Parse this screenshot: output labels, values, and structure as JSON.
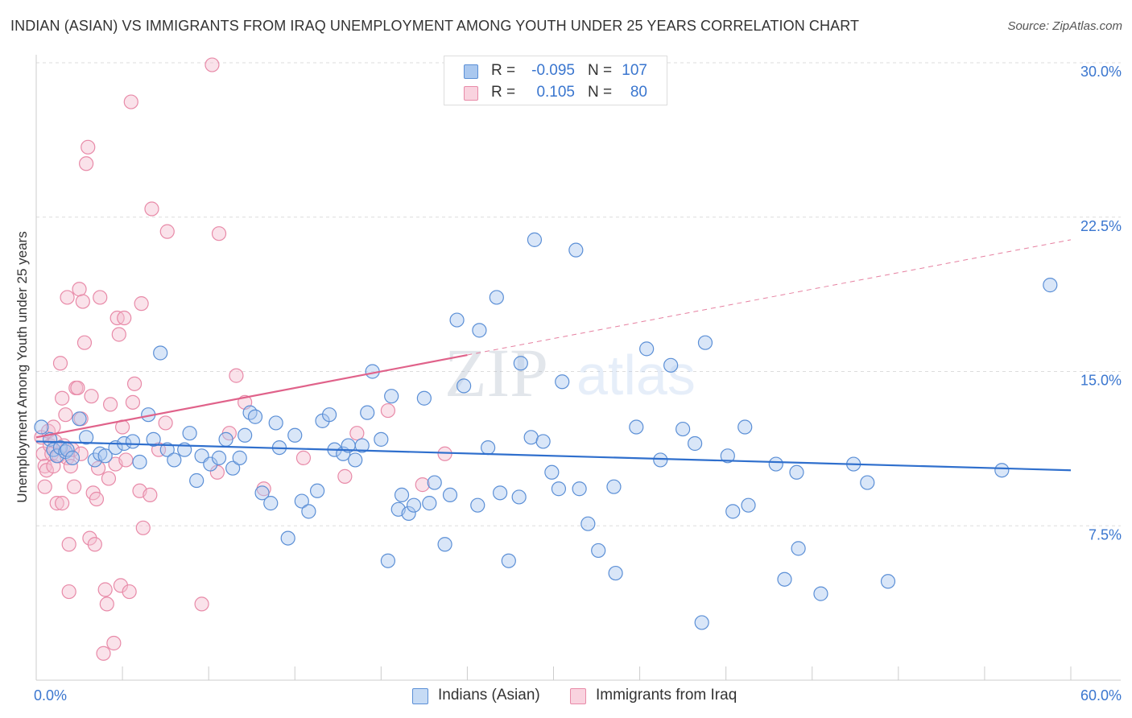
{
  "header": {
    "title": "INDIAN (ASIAN) VS IMMIGRANTS FROM IRAQ UNEMPLOYMENT AMONG YOUTH UNDER 25 YEARS CORRELATION CHART",
    "source": "Source: ZipAtlas.com"
  },
  "watermark": {
    "zip": "ZIP",
    "atlas": "atlas"
  },
  "stats": {
    "row1": {
      "r_label": "R =",
      "r_value": "-0.095",
      "n_label": "N =",
      "n_value": "107"
    },
    "row2": {
      "r_label": "R =",
      "r_value": "0.105",
      "n_label": "N =",
      "n_value": "80"
    }
  },
  "legend": {
    "item1": "Indians (Asian)",
    "item2": "Immigrants from Iraq"
  },
  "colors": {
    "blue_fill": "#aac8ef",
    "blue_stroke": "#5b8fd6",
    "blue_line": "#2f6fcd",
    "pink_fill": "#f4bfd0",
    "pink_stroke": "#e88aa8",
    "pink_line": "#e0628a",
    "tick_label": "#3a76cf",
    "grid": "#dddddd"
  },
  "chart_data": {
    "type": "scatter",
    "title": "INDIAN (ASIAN) VS IMMIGRANTS FROM IRAQ UNEMPLOYMENT AMONG YOUTH UNDER 25 YEARS CORRELATION CHART",
    "xlabel": "",
    "ylabel": "Unemployment Among Youth under 25 years",
    "xlim": [
      0,
      60
    ],
    "ylim": [
      0,
      30
    ],
    "x_tick_labels": [
      "0.0%",
      "60.0%"
    ],
    "y_ticks": [
      {
        "value": 7.5,
        "label": "7.5%"
      },
      {
        "value": 15.0,
        "label": "15.0%"
      },
      {
        "value": 22.5,
        "label": "22.5%"
      },
      {
        "value": 30.0,
        "label": "30.0%"
      }
    ],
    "grid": true,
    "legend_position": "bottom-center",
    "series": [
      {
        "name": "Indians (Asian)",
        "color": "#5b8fd6",
        "trend": {
          "x": [
            0,
            60
          ],
          "y": [
            11.6,
            10.2
          ],
          "style": "solid"
        },
        "points": [
          [
            0.3,
            12.3
          ],
          [
            0.8,
            11.7
          ],
          [
            1.0,
            11.2
          ],
          [
            1.2,
            10.9
          ],
          [
            1.4,
            11.3
          ],
          [
            1.7,
            11.1
          ],
          [
            1.8,
            11.2
          ],
          [
            2.1,
            10.8
          ],
          [
            2.5,
            12.7
          ],
          [
            2.9,
            11.8
          ],
          [
            3.4,
            10.7
          ],
          [
            3.7,
            11.0
          ],
          [
            4.0,
            10.9
          ],
          [
            4.6,
            11.3
          ],
          [
            5.1,
            11.5
          ],
          [
            5.6,
            11.6
          ],
          [
            6.0,
            10.6
          ],
          [
            6.5,
            12.9
          ],
          [
            6.8,
            11.7
          ],
          [
            7.2,
            15.9
          ],
          [
            7.6,
            11.2
          ],
          [
            8.0,
            10.7
          ],
          [
            8.6,
            11.2
          ],
          [
            8.9,
            12.0
          ],
          [
            9.3,
            9.7
          ],
          [
            9.6,
            10.9
          ],
          [
            10.1,
            10.5
          ],
          [
            10.6,
            10.8
          ],
          [
            11.0,
            11.7
          ],
          [
            11.4,
            10.3
          ],
          [
            11.8,
            10.8
          ],
          [
            12.1,
            11.9
          ],
          [
            12.4,
            13.0
          ],
          [
            12.7,
            12.8
          ],
          [
            13.1,
            9.1
          ],
          [
            13.6,
            8.6
          ],
          [
            13.9,
            12.5
          ],
          [
            14.1,
            11.3
          ],
          [
            14.6,
            6.9
          ],
          [
            15.0,
            11.9
          ],
          [
            15.4,
            8.7
          ],
          [
            15.8,
            8.2
          ],
          [
            16.3,
            9.2
          ],
          [
            16.6,
            12.6
          ],
          [
            17.0,
            12.9
          ],
          [
            17.3,
            11.2
          ],
          [
            17.8,
            11.0
          ],
          [
            18.1,
            11.4
          ],
          [
            18.5,
            10.7
          ],
          [
            18.9,
            11.4
          ],
          [
            19.2,
            13.0
          ],
          [
            19.5,
            15.0
          ],
          [
            20.0,
            11.7
          ],
          [
            20.4,
            5.8
          ],
          [
            20.6,
            13.8
          ],
          [
            21.0,
            8.3
          ],
          [
            21.2,
            9.0
          ],
          [
            21.6,
            8.1
          ],
          [
            21.9,
            8.5
          ],
          [
            22.5,
            13.7
          ],
          [
            22.8,
            8.6
          ],
          [
            23.1,
            9.6
          ],
          [
            23.7,
            6.6
          ],
          [
            24.0,
            9.0
          ],
          [
            24.4,
            17.5
          ],
          [
            24.8,
            14.3
          ],
          [
            25.6,
            8.5
          ],
          [
            25.7,
            17.0
          ],
          [
            26.2,
            11.3
          ],
          [
            26.7,
            18.6
          ],
          [
            26.9,
            9.1
          ],
          [
            27.4,
            5.8
          ],
          [
            28.0,
            8.9
          ],
          [
            28.1,
            15.4
          ],
          [
            28.7,
            11.8
          ],
          [
            28.9,
            21.4
          ],
          [
            29.4,
            11.6
          ],
          [
            29.9,
            10.1
          ],
          [
            30.3,
            9.3
          ],
          [
            30.5,
            14.5
          ],
          [
            31.3,
            20.9
          ],
          [
            31.5,
            9.3
          ],
          [
            32.0,
            7.6
          ],
          [
            32.6,
            6.3
          ],
          [
            33.5,
            9.4
          ],
          [
            33.6,
            5.2
          ],
          [
            34.8,
            12.3
          ],
          [
            35.4,
            16.1
          ],
          [
            36.2,
            10.7
          ],
          [
            36.8,
            15.3
          ],
          [
            37.5,
            12.2
          ],
          [
            38.2,
            11.5
          ],
          [
            38.6,
            2.8
          ],
          [
            38.8,
            16.4
          ],
          [
            40.1,
            10.9
          ],
          [
            40.4,
            8.2
          ],
          [
            41.1,
            12.3
          ],
          [
            41.3,
            8.5
          ],
          [
            42.9,
            10.5
          ],
          [
            43.4,
            4.9
          ],
          [
            44.1,
            10.1
          ],
          [
            44.2,
            6.4
          ],
          [
            45.5,
            4.2
          ],
          [
            47.4,
            10.5
          ],
          [
            48.2,
            9.6
          ],
          [
            49.4,
            4.8
          ],
          [
            56.0,
            10.2
          ],
          [
            58.8,
            19.2
          ]
        ]
      },
      {
        "name": "Immigrants from Iraq",
        "color": "#e88aa8",
        "trend": {
          "x": [
            0,
            60
          ],
          "y": [
            11.8,
            21.4
          ],
          "style": "solid to x=25, dashed after"
        },
        "points": [
          [
            0.3,
            11.8
          ],
          [
            0.4,
            11.0
          ],
          [
            0.5,
            10.4
          ],
          [
            0.5,
            9.4
          ],
          [
            0.6,
            10.2
          ],
          [
            0.7,
            12.1
          ],
          [
            0.8,
            11.4
          ],
          [
            0.9,
            11.0
          ],
          [
            1.0,
            10.4
          ],
          [
            1.0,
            12.3
          ],
          [
            1.1,
            11.6
          ],
          [
            1.2,
            8.6
          ],
          [
            1.3,
            10.9
          ],
          [
            1.4,
            15.4
          ],
          [
            1.5,
            13.7
          ],
          [
            1.5,
            8.6
          ],
          [
            1.6,
            11.4
          ],
          [
            1.7,
            12.9
          ],
          [
            1.8,
            10.8
          ],
          [
            1.8,
            18.6
          ],
          [
            1.9,
            6.6
          ],
          [
            1.9,
            4.3
          ],
          [
            2.0,
            10.4
          ],
          [
            2.1,
            11.2
          ],
          [
            2.2,
            9.4
          ],
          [
            2.3,
            14.2
          ],
          [
            2.4,
            14.2
          ],
          [
            2.5,
            19.0
          ],
          [
            2.6,
            11.0
          ],
          [
            2.6,
            12.7
          ],
          [
            2.7,
            18.4
          ],
          [
            2.8,
            16.4
          ],
          [
            2.9,
            25.1
          ],
          [
            3.0,
            25.9
          ],
          [
            3.1,
            6.9
          ],
          [
            3.2,
            13.8
          ],
          [
            3.3,
            9.1
          ],
          [
            3.4,
            6.6
          ],
          [
            3.5,
            8.8
          ],
          [
            3.6,
            10.3
          ],
          [
            3.7,
            18.6
          ],
          [
            3.9,
            1.3
          ],
          [
            4.0,
            4.4
          ],
          [
            4.1,
            3.7
          ],
          [
            4.2,
            9.8
          ],
          [
            4.3,
            13.4
          ],
          [
            4.5,
            1.8
          ],
          [
            4.6,
            10.5
          ],
          [
            4.7,
            17.6
          ],
          [
            4.8,
            16.8
          ],
          [
            4.9,
            4.6
          ],
          [
            5.0,
            12.3
          ],
          [
            5.1,
            17.6
          ],
          [
            5.2,
            10.7
          ],
          [
            5.4,
            4.3
          ],
          [
            5.5,
            28.1
          ],
          [
            5.6,
            13.5
          ],
          [
            5.7,
            14.4
          ],
          [
            6.0,
            9.2
          ],
          [
            6.1,
            18.3
          ],
          [
            6.2,
            7.4
          ],
          [
            6.6,
            9.0
          ],
          [
            6.7,
            22.9
          ],
          [
            7.1,
            11.2
          ],
          [
            7.5,
            12.5
          ],
          [
            7.6,
            21.8
          ],
          [
            9.6,
            3.7
          ],
          [
            10.2,
            29.9
          ],
          [
            10.5,
            10.1
          ],
          [
            10.6,
            21.7
          ],
          [
            11.2,
            12.0
          ],
          [
            11.6,
            14.8
          ],
          [
            12.1,
            13.5
          ],
          [
            13.2,
            9.3
          ],
          [
            15.5,
            10.8
          ],
          [
            17.9,
            9.9
          ],
          [
            18.6,
            12.0
          ],
          [
            20.4,
            13.1
          ],
          [
            22.4,
            9.5
          ],
          [
            23.7,
            11.0
          ]
        ]
      }
    ]
  }
}
